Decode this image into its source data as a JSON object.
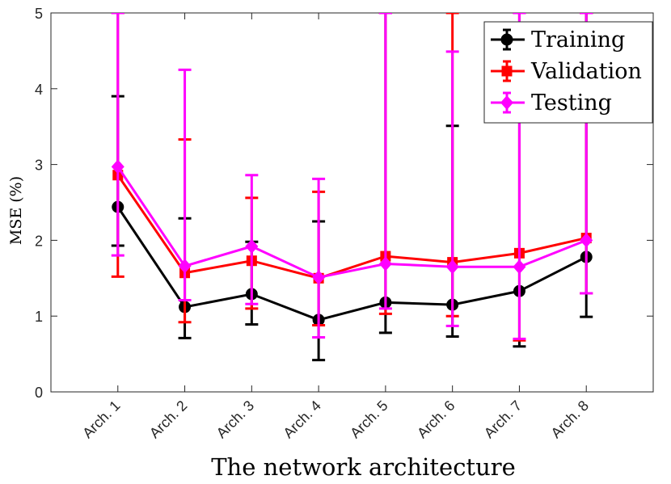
{
  "chart_data": {
    "type": "line",
    "title": "",
    "xlabel": "The network architecture",
    "ylabel": "MSE (%)",
    "categories": [
      "Arch. 1",
      "Arch. 2",
      "Arch. 3",
      "Arch. 4",
      "Arch. 5",
      "Arch. 6",
      "Arch. 7",
      "Arch. 8"
    ],
    "ylim": [
      0,
      5
    ],
    "yticks": [
      "0",
      "1",
      "2",
      "3",
      "4",
      "5"
    ],
    "grid": false,
    "legend_position": "top-right",
    "series": [
      {
        "name": "Training",
        "color": "#000000",
        "marker": "circle",
        "values": [
          2.44,
          1.12,
          1.29,
          0.95,
          1.18,
          1.15,
          1.33,
          1.78
        ],
        "err_low": [
          1.93,
          0.71,
          0.89,
          0.42,
          0.78,
          0.73,
          0.6,
          0.99
        ],
        "err_high": [
          3.9,
          2.29,
          1.98,
          2.25,
          5.0,
          3.51,
          5.0,
          5.0
        ]
      },
      {
        "name": "Validation",
        "color": "#ff0000",
        "marker": "square",
        "values": [
          2.86,
          1.57,
          1.73,
          1.5,
          1.79,
          1.71,
          1.83,
          2.03
        ],
        "err_low": [
          1.52,
          0.92,
          1.1,
          0.88,
          1.03,
          1.0,
          0.68,
          1.3
        ],
        "err_high": [
          5.0,
          3.33,
          2.56,
          2.64,
          5.0,
          5.0,
          5.0,
          5.0
        ]
      },
      {
        "name": "Testing",
        "color": "#ff00ff",
        "marker": "diamond",
        "values": [
          2.97,
          1.66,
          1.92,
          1.51,
          1.69,
          1.65,
          1.65,
          2.0
        ],
        "err_low": [
          1.8,
          1.21,
          1.16,
          0.72,
          1.1,
          0.87,
          0.7,
          1.3
        ],
        "err_high": [
          5.0,
          4.25,
          2.86,
          2.81,
          5.0,
          4.49,
          5.0,
          5.0
        ]
      }
    ]
  }
}
